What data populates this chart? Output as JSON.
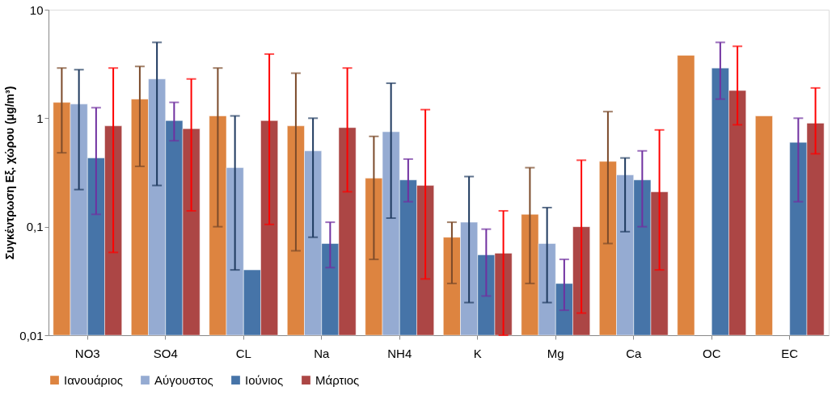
{
  "chart_data": {
    "type": "bar",
    "ylabel": "Συγκέντρωση  Εξ. χώρου (μg/m³)",
    "categories": [
      "NO3",
      "SO4",
      "CL",
      "Na",
      "NH4",
      "K",
      "Mg",
      "Ca",
      "OC",
      "EC"
    ],
    "series": [
      {
        "name": "Ιανουάριος",
        "color": "#dd8440",
        "values": [
          1.4,
          1.5,
          1.05,
          0.85,
          0.28,
          0.08,
          0.13,
          0.4,
          3.8,
          1.05
        ],
        "errors": [
          [
            0.48,
            2.9
          ],
          [
            0.36,
            3.0
          ],
          [
            0.1,
            2.9
          ],
          [
            0.06,
            2.6
          ],
          [
            0.05,
            0.68
          ],
          [
            0.03,
            0.11
          ],
          [
            0.03,
            0.35
          ],
          [
            0.07,
            1.15
          ],
          null,
          null
        ]
      },
      {
        "name": "Αύγουστος",
        "color": "#95abd2",
        "values": [
          1.35,
          2.3,
          0.35,
          0.5,
          0.75,
          0.11,
          0.07,
          0.3,
          null,
          null
        ],
        "errors": [
          [
            0.22,
            2.8
          ],
          [
            0.24,
            5.0
          ],
          [
            0.04,
            1.05
          ],
          [
            0.08,
            1.0
          ],
          [
            0.12,
            2.1
          ],
          [
            0.02,
            0.29
          ],
          [
            0.02,
            0.15
          ],
          [
            0.09,
            0.43
          ],
          null,
          null
        ]
      },
      {
        "name": "Ιούνιος",
        "color": "#4674a8",
        "values": [
          0.43,
          0.95,
          0.04,
          0.07,
          0.27,
          0.055,
          0.03,
          0.27,
          2.9,
          0.6
        ],
        "errors": [
          [
            0.13,
            1.25
          ],
          [
            0.62,
            1.4
          ],
          null,
          [
            0.042,
            0.11
          ],
          [
            0.17,
            0.42
          ],
          [
            0.023,
            0.095
          ],
          [
            0.017,
            0.05
          ],
          [
            0.1,
            0.5
          ],
          [
            1.5,
            5.0
          ],
          [
            0.17,
            1.0
          ]
        ]
      },
      {
        "name": "Μάρτιος",
        "color": "#ac4645",
        "values": [
          0.85,
          0.8,
          0.95,
          0.82,
          0.24,
          0.057,
          0.1,
          0.21,
          1.8,
          0.9
        ],
        "errors": [
          [
            0.058,
            2.9
          ],
          [
            0.14,
            2.3
          ],
          [
            0.105,
            3.9
          ],
          [
            0.21,
            2.9
          ],
          [
            0.033,
            1.2
          ],
          [
            0.01,
            0.14
          ],
          [
            0.016,
            0.41
          ],
          [
            0.04,
            0.78
          ],
          [
            0.87,
            4.6
          ],
          [
            0.47,
            1.9
          ]
        ]
      }
    ],
    "log": true,
    "ylim": [
      0.01,
      10
    ],
    "yticks": [
      {
        "value": 0.01,
        "label": "0,01"
      },
      {
        "value": 0.1,
        "label": "0,1"
      },
      {
        "value": 1,
        "label": "1"
      },
      {
        "value": 10,
        "label": "10"
      }
    ],
    "grid": false,
    "legend": "bottom"
  }
}
